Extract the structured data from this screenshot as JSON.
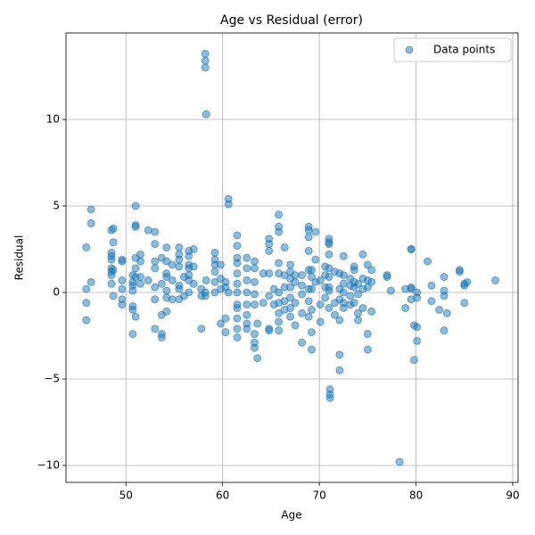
{
  "chart_data": {
    "type": "scatter",
    "title": "Age vs Residual (error)",
    "x_label": "Age",
    "y_label": "Residual",
    "xlim": [
      43.8,
      90.55
    ],
    "ylim": [
      -10.98,
      15.0
    ],
    "xticks": [
      50,
      60,
      70,
      80,
      90
    ],
    "yticks": [
      {
        "value": -10,
        "label": "−10"
      },
      {
        "value": -5,
        "label": "−5"
      },
      0,
      5,
      10
    ],
    "grid": true,
    "legend": "upper right",
    "series": [
      {
        "name": "Data points",
        "color": "#1f77b4",
        "x": [
          45.9,
          45.9,
          45.9,
          45.9,
          46.4,
          46.4,
          46.4,
          48.5,
          48.5,
          48.5,
          48.5,
          48.5,
          48.5,
          48.5,
          48.5,
          48.7,
          48.7,
          48.7,
          48.7,
          49.6,
          49.6,
          49.6,
          49.6,
          49.6,
          49.6,
          50.7,
          50.7,
          50.7,
          50.7,
          50.7,
          50.7,
          50.7,
          51.0,
          51.0,
          51.0,
          51.0,
          51.0,
          51.0,
          51.0,
          51.5,
          51.5,
          51.5,
          51.5,
          52.3,
          52.3,
          53.0,
          53.0,
          53.0,
          53.0,
          53.0,
          53.0,
          53.0,
          53.7,
          53.7,
          53.7,
          53.7,
          53.7,
          54.2,
          54.2,
          54.2,
          54.2,
          54.2,
          54.2,
          54.2,
          54.8,
          54.8,
          54.8,
          55.5,
          55.5,
          55.5,
          55.5,
          55.5,
          55.5,
          55.5,
          56.0,
          56.0,
          56.5,
          56.5,
          56.5,
          56.5,
          56.5,
          56.5,
          56.5,
          57.0,
          57.0,
          57.0,
          57.8,
          57.8,
          57.8,
          58.2,
          58.2,
          58.2,
          58.2,
          58.2,
          58.3,
          58.3,
          59.2,
          59.2,
          59.2,
          59.2,
          59.2,
          59.2,
          59.8,
          59.8,
          59.8,
          59.8,
          60.3,
          60.3,
          60.3,
          60.3,
          60.6,
          60.6,
          60.6,
          61.5,
          61.5,
          61.5,
          61.5,
          61.5,
          61.5,
          61.5,
          61.5,
          61.5,
          61.5,
          61.5,
          61.5,
          62.5,
          62.5,
          62.5,
          62.5,
          62.5,
          62.5,
          62.5,
          62.5,
          63.3,
          63.3,
          63.3,
          63.3,
          63.3,
          63.3,
          63.3,
          63.3,
          63.6,
          63.6,
          64.2,
          64.2,
          64.8,
          64.8,
          64.8,
          64.8,
          64.8,
          64.8,
          64.8,
          65.3,
          65.3,
          65.8,
          65.8,
          65.8,
          65.8,
          65.8,
          65.8,
          65.8,
          65.8,
          65.8,
          65.8,
          66.4,
          66.4,
          66.4,
          66.4,
          66.4,
          67.0,
          67.0,
          67.0,
          67.0,
          67.0,
          67.0,
          67.0,
          67.5,
          67.5,
          67.5,
          67.5,
          68.2,
          68.2,
          68.2,
          68.2,
          68.2,
          68.9,
          68.9,
          68.9,
          68.9,
          68.9,
          68.9,
          68.9,
          68.9,
          69.2,
          69.2,
          69.2,
          69.2,
          69.2,
          69.2,
          69.6,
          69.6,
          69.6,
          70.1,
          70.1,
          70.1,
          70.6,
          70.6,
          70.6,
          70.6,
          71.0,
          71.0,
          71.0,
          71.0,
          71.0,
          71.0,
          71.0,
          71.0,
          71.0,
          71.1,
          71.1,
          71.1,
          71.6,
          71.6,
          71.6,
          72.1,
          72.1,
          72.1,
          72.1,
          72.1,
          72.1,
          72.5,
          72.5,
          72.5,
          72.5,
          72.5,
          72.5,
          73.2,
          73.2,
          73.2,
          73.2,
          73.6,
          73.6,
          73.6,
          73.6,
          73.6,
          74.0,
          74.0,
          74.0,
          74.0,
          74.5,
          74.5,
          74.5,
          74.5,
          75.0,
          75.0,
          75.0,
          75.0,
          75.0,
          75.4,
          75.4,
          75.4,
          77.0,
          77.0,
          77.4,
          78.3,
          78.9,
          78.9,
          79.5,
          79.5,
          79.5,
          79.5,
          79.5,
          79.8,
          79.8,
          80.1,
          80.1,
          80.1,
          80.1,
          81.2,
          81.6,
          81.6,
          82.4,
          82.9,
          82.9,
          82.9,
          82.9,
          83.2,
          84.5,
          84.5,
          85.0,
          85.0,
          85.0,
          85.3,
          88.2
        ],
        "values": [
          2.6,
          0.2,
          -0.6,
          -1.6,
          4.8,
          4.0,
          0.6,
          3.6,
          2.3,
          2.1,
          1.9,
          1.4,
          1.2,
          1.0,
          0.5,
          3.7,
          2.9,
          1.3,
          -0.2,
          1.9,
          1.8,
          0.7,
          0.2,
          -0.4,
          -0.7,
          1.0,
          0.6,
          0.4,
          0.1,
          -0.8,
          -1.0,
          -2.4,
          5.0,
          3.9,
          3.8,
          2.0,
          1.4,
          0.9,
          -1.4,
          2.2,
          1.8,
          0.9,
          0.5,
          3.6,
          0.7,
          3.5,
          2.8,
          1.8,
          1.4,
          0.3,
          -0.4,
          -2.1,
          0.5,
          -1.3,
          -2.4,
          -2.6,
          2.0,
          2.6,
          1.8,
          1.1,
          0.9,
          0.1,
          -0.3,
          -1.1,
          1.6,
          0.7,
          -0.4,
          2.6,
          2.2,
          1.9,
          1.5,
          0.4,
          0.2,
          -0.4,
          0.9,
          -0.2,
          2.4,
          2.1,
          1.6,
          1.4,
          1.0,
          0.7,
          0.0,
          2.5,
          1.5,
          0.5,
          -2.1,
          0.2,
          -0.2,
          13.8,
          13.4,
          13.0,
          0.0,
          -0.2,
          10.3,
          0.7,
          2.3,
          1.9,
          1.6,
          1.2,
          0.6,
          0.0,
          1.6,
          0.8,
          0.2,
          -1.8,
          0.6,
          0.3,
          -1.5,
          -2.3,
          5.4,
          5.1,
          0.0,
          3.3,
          2.7,
          2.0,
          1.7,
          1.1,
          0.5,
          0.0,
          -0.7,
          -1.5,
          -2.1,
          -2.6,
          -0.9,
          2.0,
          1.4,
          0.7,
          0.0,
          -0.7,
          -1.3,
          -1.8,
          -2.1,
          1.8,
          1.4,
          0.6,
          -0.1,
          -0.7,
          -2.4,
          -2.9,
          -3.2,
          -3.8,
          -1.8,
          1.1,
          -0.6,
          3.1,
          2.8,
          2.4,
          1.1,
          -0.2,
          -2.2,
          -2.1,
          0.2,
          -0.7,
          4.5,
          3.8,
          3.5,
          1.7,
          1.1,
          0.0,
          -0.6,
          -1.2,
          -1.7,
          -2.2,
          2.6,
          1.0,
          0.3,
          -0.5,
          -1.0,
          1.6,
          1.2,
          0.8,
          0.3,
          -0.3,
          -0.9,
          -1.4,
          1.0,
          0.6,
          -0.6,
          -1.9,
          1.0,
          0.4,
          -0.1,
          -1.2,
          -2.9,
          3.8,
          3.6,
          3.2,
          2.4,
          1.3,
          0.2,
          -0.5,
          -1.4,
          1.3,
          0.9,
          0.2,
          -1.0,
          -2.3,
          -3.3,
          3.5,
          1.9,
          0.6,
          -1.7,
          -0.7,
          0.7,
          1.5,
          1.0,
          0.3,
          -0.3,
          3.1,
          2.9,
          2.8,
          2.2,
          1.4,
          0.9,
          0.3,
          0.1,
          -0.9,
          -5.6,
          -5.9,
          -6.1,
          1.2,
          -0.6,
          -1.3,
          -4.5,
          -3.6,
          -1.6,
          0.2,
          -0.4,
          1.1,
          2.1,
          1.0,
          0.5,
          0.0,
          -0.6,
          -0.9,
          0.8,
          0.4,
          -0.2,
          -0.7,
          1.5,
          1.3,
          0.6,
          0.3,
          -0.6,
          -1.2,
          -1.6,
          -0.1,
          0.5,
          2.2,
          0.8,
          0.2,
          -0.9,
          1.6,
          0.7,
          0.3,
          -2.4,
          -3.3,
          0.6,
          1.3,
          -1.1,
          1.0,
          0.9,
          0.1,
          -9.8,
          0.2,
          -0.9,
          2.5,
          2.5,
          0.3,
          0.2,
          -0.4,
          -1.9,
          -3.9,
          -2.0,
          -2.8,
          0.0,
          -0.3,
          1.8,
          0.4,
          -0.5,
          -1.0,
          -2.2,
          0.1,
          -0.2,
          0.9,
          -1.2,
          1.3,
          1.2,
          0.4,
          -0.6,
          0.5,
          0.6,
          0.7
        ]
      }
    ]
  }
}
